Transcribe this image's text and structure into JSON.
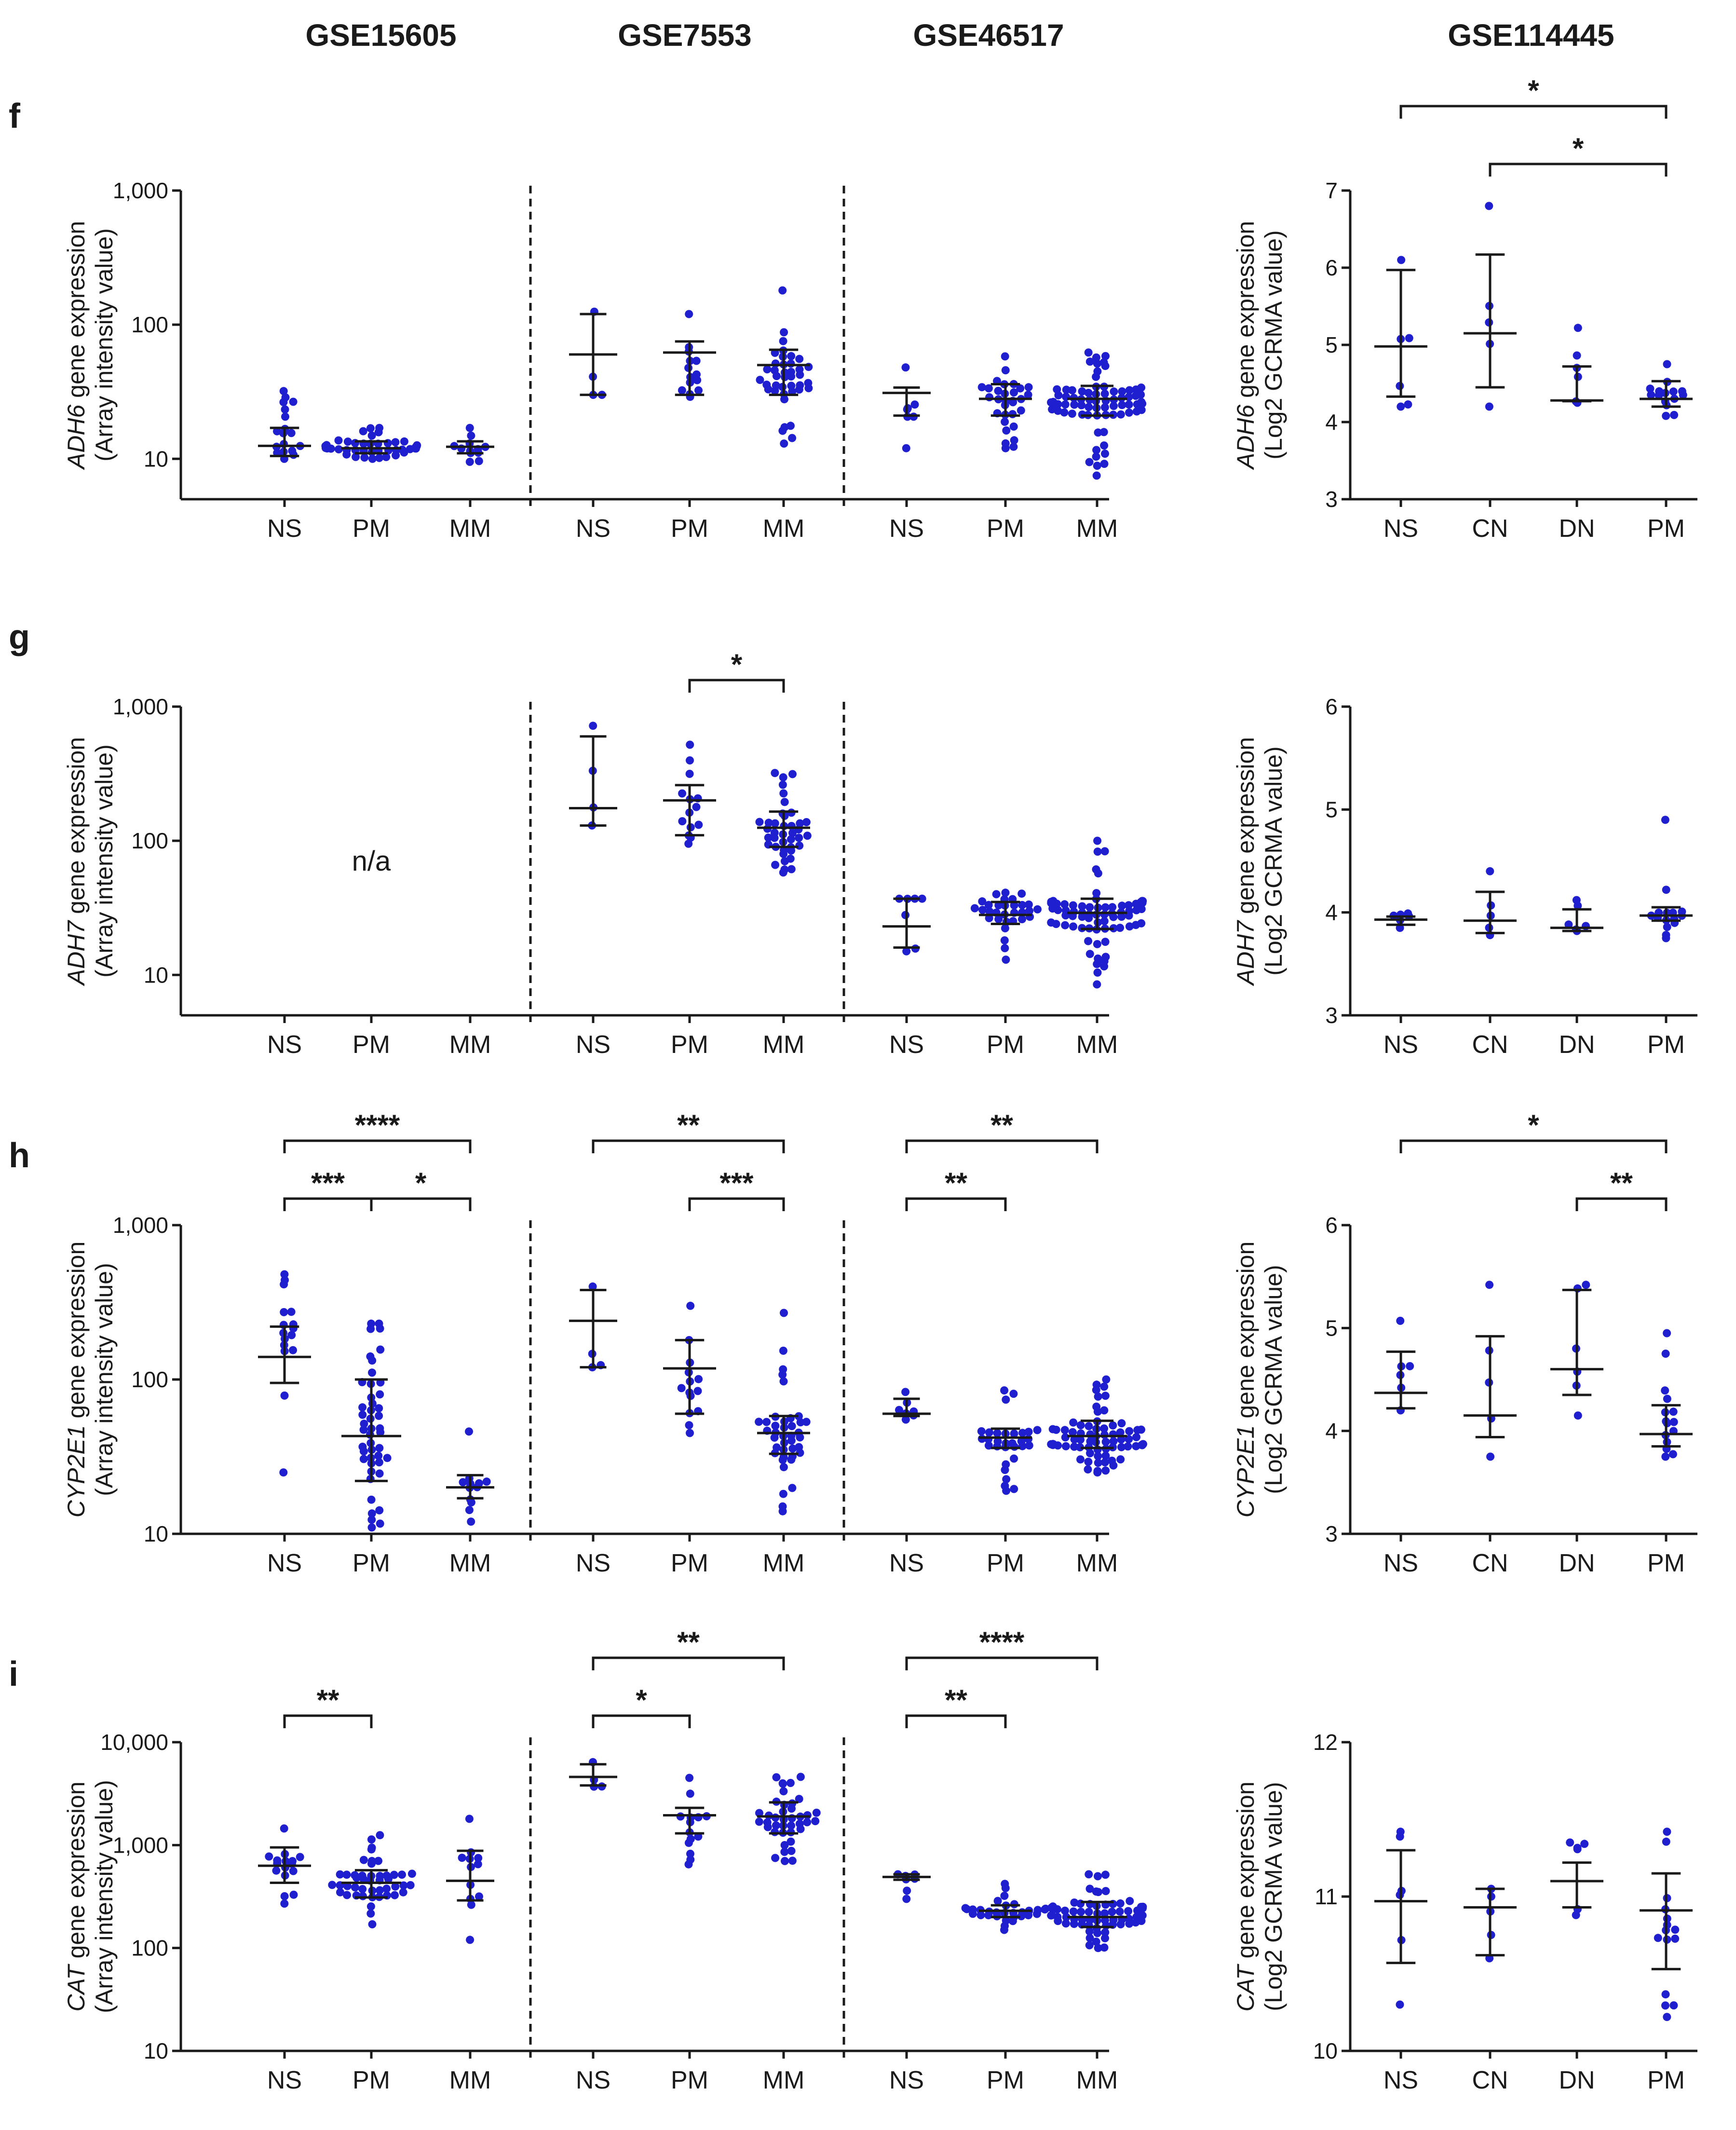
{
  "datasets": [
    "GSE15605",
    "GSE7553",
    "GSE46517",
    "GSE114445"
  ],
  "colors": {
    "points": "#1f1fd0",
    "error_bars": "#1a1a1a",
    "axes": "#1a1a1a"
  },
  "chart_data": [
    {
      "type": "scatter",
      "panel": "f",
      "gene": "ADH6",
      "left": {
        "scale": "log",
        "ylabel_gene": "ADH6",
        "ylabel_rest": " gene expression",
        "ylabel_units": "(Array intensity value)",
        "yticks": [
          10,
          100,
          1000
        ],
        "ytick_labels": [
          "10",
          "100",
          "1,000"
        ],
        "ylim": [
          5,
          1000
        ],
        "groups": [
          {
            "dataset": "GSE15605",
            "label": "NS",
            "median": 12.5,
            "lo": 10.5,
            "hi": 17,
            "min": 10,
            "max": 32,
            "n": 18
          },
          {
            "dataset": "GSE15605",
            "label": "PM",
            "median": 12,
            "lo": 11,
            "hi": 13.5,
            "min": 10,
            "max": 17,
            "n": 45
          },
          {
            "dataset": "GSE15605",
            "label": "MM",
            "median": 12.3,
            "lo": 11,
            "hi": 13.5,
            "min": 9.5,
            "max": 17,
            "n": 12
          },
          {
            "dataset": "GSE7553",
            "label": "NS",
            "median": 60,
            "lo": 30,
            "hi": 120,
            "min": 30,
            "max": 125,
            "n": 4
          },
          {
            "dataset": "GSE7553",
            "label": "PM",
            "median": 62,
            "lo": 30,
            "hi": 75,
            "min": 29,
            "max": 120,
            "n": 14
          },
          {
            "dataset": "GSE7553",
            "label": "MM",
            "median": 50,
            "lo": 30,
            "hi": 65,
            "min": 13,
            "max": 180,
            "n": 40
          },
          {
            "dataset": "GSE46517",
            "label": "NS",
            "median": 31,
            "lo": 21,
            "hi": 34,
            "min": 12,
            "max": 48,
            "n": 7
          },
          {
            "dataset": "GSE46517",
            "label": "PM",
            "median": 28,
            "lo": 21,
            "hi": 36,
            "min": 12,
            "max": 58,
            "n": 31
          },
          {
            "dataset": "GSE46517",
            "label": "MM",
            "median": 28,
            "lo": 21,
            "hi": 35,
            "min": 7.5,
            "max": 62,
            "n": 73
          }
        ],
        "brackets": []
      },
      "right": {
        "scale": "linear",
        "ylabel_gene": "ADH6",
        "ylabel_rest": " gene expression",
        "ylabel_units": "(Log2 GCRMA value)",
        "yticks": [
          3,
          4,
          5,
          6,
          7
        ],
        "ytick_labels": [
          "3",
          "4",
          "5",
          "6",
          "7"
        ],
        "ylim": [
          3,
          7
        ],
        "groups": [
          {
            "label": "NS",
            "median": 4.98,
            "lo": 4.33,
            "hi": 5.97,
            "min": 4.2,
            "max": 6.1,
            "n": 6
          },
          {
            "label": "CN",
            "median": 5.15,
            "lo": 4.45,
            "hi": 6.17,
            "min": 4.2,
            "max": 6.8,
            "n": 5
          },
          {
            "label": "DN",
            "median": 4.28,
            "lo": 4.27,
            "hi": 4.72,
            "min": 4.25,
            "max": 5.22,
            "n": 6
          },
          {
            "label": "PM",
            "median": 4.3,
            "lo": 4.2,
            "hi": 4.53,
            "min": 4.08,
            "max": 4.75,
            "n": 15
          }
        ],
        "brackets": [
          {
            "from": 0,
            "to": 3,
            "label": "*",
            "level": 1
          },
          {
            "from": 1,
            "to": 3,
            "label": "*",
            "level": 0
          }
        ]
      }
    },
    {
      "type": "scatter",
      "panel": "g",
      "gene": "ADH7",
      "left": {
        "scale": "log",
        "ylabel_gene": "ADH7",
        "ylabel_rest": " gene expression",
        "ylabel_units": "(Array intensity value)",
        "yticks": [
          10,
          100,
          1000
        ],
        "ytick_labels": [
          "10",
          "100",
          "1,000"
        ],
        "ylim": [
          5,
          1000
        ],
        "na_text": "n/a",
        "groups": [
          {
            "dataset": "GSE15605",
            "label": "NS",
            "n": 0
          },
          {
            "dataset": "GSE15605",
            "label": "PM",
            "n": 0
          },
          {
            "dataset": "GSE15605",
            "label": "MM",
            "n": 0
          },
          {
            "dataset": "GSE7553",
            "label": "NS",
            "median": 175,
            "lo": 130,
            "hi": 600,
            "min": 130,
            "max": 720,
            "n": 4
          },
          {
            "dataset": "GSE7553",
            "label": "PM",
            "median": 200,
            "lo": 110,
            "hi": 260,
            "min": 95,
            "max": 520,
            "n": 14
          },
          {
            "dataset": "GSE7553",
            "label": "MM",
            "median": 125,
            "lo": 90,
            "hi": 165,
            "min": 58,
            "max": 320,
            "n": 40
          },
          {
            "dataset": "GSE46517",
            "label": "NS",
            "median": 23,
            "lo": 16,
            "hi": 37,
            "min": 15,
            "max": 37,
            "n": 7
          },
          {
            "dataset": "GSE46517",
            "label": "PM",
            "median": 28,
            "lo": 24,
            "hi": 35,
            "min": 13,
            "max": 41,
            "n": 31
          },
          {
            "dataset": "GSE46517",
            "label": "MM",
            "median": 29,
            "lo": 22,
            "hi": 37,
            "min": 8.5,
            "max": 100,
            "n": 73
          }
        ],
        "brackets": [
          {
            "from": 4,
            "to": 5,
            "label": "*",
            "level": 0
          }
        ]
      },
      "right": {
        "scale": "linear",
        "ylabel_gene": "ADH7",
        "ylabel_rest": " gene expression",
        "ylabel_units": "(Log2 GCRMA value)",
        "yticks": [
          3,
          4,
          5,
          6
        ],
        "ytick_labels": [
          "3",
          "4",
          "5",
          "6"
        ],
        "ylim": [
          3,
          6
        ],
        "groups": [
          {
            "label": "NS",
            "median": 3.93,
            "lo": 3.88,
            "hi": 3.96,
            "min": 3.85,
            "max": 3.99,
            "n": 6
          },
          {
            "label": "CN",
            "median": 3.92,
            "lo": 3.8,
            "hi": 4.2,
            "min": 3.78,
            "max": 4.4,
            "n": 5
          },
          {
            "label": "DN",
            "median": 3.85,
            "lo": 3.82,
            "hi": 4.03,
            "min": 3.82,
            "max": 4.12,
            "n": 6
          },
          {
            "label": "PM",
            "median": 3.97,
            "lo": 3.92,
            "hi": 4.05,
            "min": 3.75,
            "max": 4.9,
            "n": 15
          }
        ],
        "brackets": []
      }
    },
    {
      "type": "scatter",
      "panel": "h",
      "gene": "CYP2E1",
      "left": {
        "scale": "log",
        "ylabel_gene": "CYP2E1",
        "ylabel_rest": " gene expression",
        "ylabel_units": "(Array intensity value)",
        "yticks": [
          10,
          100,
          1000
        ],
        "ytick_labels": [
          "10",
          "100",
          "1,000"
        ],
        "ylim": [
          10,
          1000
        ],
        "groups": [
          {
            "dataset": "GSE15605",
            "label": "NS",
            "median": 140,
            "lo": 95,
            "hi": 220,
            "min": 25,
            "max": 480,
            "n": 16
          },
          {
            "dataset": "GSE15605",
            "label": "PM",
            "median": 43,
            "lo": 22,
            "hi": 100,
            "min": 11,
            "max": 230,
            "n": 46
          },
          {
            "dataset": "GSE15605",
            "label": "MM",
            "median": 20,
            "lo": 17,
            "hi": 24,
            "min": 12,
            "max": 46,
            "n": 12
          },
          {
            "dataset": "GSE7553",
            "label": "NS",
            "median": 240,
            "lo": 120,
            "hi": 380,
            "min": 120,
            "max": 400,
            "n": 4
          },
          {
            "dataset": "GSE7553",
            "label": "PM",
            "median": 118,
            "lo": 60,
            "hi": 180,
            "min": 45,
            "max": 300,
            "n": 14
          },
          {
            "dataset": "GSE7553",
            "label": "MM",
            "median": 45,
            "lo": 33,
            "hi": 58,
            "min": 14,
            "max": 270,
            "n": 40
          },
          {
            "dataset": "GSE46517",
            "label": "NS",
            "median": 60,
            "lo": 58,
            "hi": 75,
            "min": 55,
            "max": 83,
            "n": 7
          },
          {
            "dataset": "GSE46517",
            "label": "PM",
            "median": 42,
            "lo": 36,
            "hi": 48,
            "min": 19,
            "max": 85,
            "n": 31
          },
          {
            "dataset": "GSE46517",
            "label": "MM",
            "median": 43,
            "lo": 36,
            "hi": 54,
            "min": 25,
            "max": 100,
            "n": 73
          }
        ],
        "brackets": [
          {
            "from": 0,
            "to": 2,
            "label": "****",
            "level": 1
          },
          {
            "from": 0,
            "to": 1,
            "label": "***",
            "level": 0
          },
          {
            "from": 1,
            "to": 2,
            "label": "*",
            "level": 0
          },
          {
            "from": 3,
            "to": 5,
            "label": "**",
            "level": 1
          },
          {
            "from": 4,
            "to": 5,
            "label": "***",
            "level": 0
          },
          {
            "from": 6,
            "to": 8,
            "label": "**",
            "level": 1
          },
          {
            "from": 6,
            "to": 7,
            "label": "**",
            "level": 0
          }
        ]
      },
      "right": {
        "scale": "linear",
        "ylabel_gene": "CYP2E1",
        "ylabel_rest": " gene expression",
        "ylabel_units": "(Log2 GCRMA value)",
        "yticks": [
          3,
          4,
          5,
          6
        ],
        "ytick_labels": [
          "3",
          "4",
          "5",
          "6"
        ],
        "ylim": [
          3,
          6
        ],
        "groups": [
          {
            "label": "NS",
            "median": 4.37,
            "lo": 4.22,
            "hi": 4.77,
            "min": 4.2,
            "max": 5.07,
            "n": 6
          },
          {
            "label": "CN",
            "median": 4.15,
            "lo": 3.94,
            "hi": 4.92,
            "min": 3.75,
            "max": 5.42,
            "n": 5
          },
          {
            "label": "DN",
            "median": 4.6,
            "lo": 4.35,
            "hi": 5.37,
            "min": 4.15,
            "max": 5.42,
            "n": 6
          },
          {
            "label": "PM",
            "median": 3.97,
            "lo": 3.85,
            "hi": 4.25,
            "min": 3.75,
            "max": 4.95,
            "n": 15
          }
        ],
        "brackets": [
          {
            "from": 0,
            "to": 3,
            "label": "*",
            "level": 1
          },
          {
            "from": 2,
            "to": 3,
            "label": "**",
            "level": 0
          }
        ]
      }
    },
    {
      "type": "scatter",
      "panel": "i",
      "gene": "CAT",
      "left": {
        "scale": "log",
        "ylabel_gene": "CAT",
        "ylabel_rest": " gene expression",
        "ylabel_units": "(Array intensity value)",
        "yticks": [
          10,
          100,
          1000,
          10000
        ],
        "ytick_labels": [
          "10",
          "100",
          "1,000",
          "10,000"
        ],
        "ylim": [
          10,
          10000
        ],
        "groups": [
          {
            "dataset": "GSE15605",
            "label": "NS",
            "median": 630,
            "lo": 430,
            "hi": 950,
            "min": 270,
            "max": 1450,
            "n": 16
          },
          {
            "dataset": "GSE15605",
            "label": "PM",
            "median": 430,
            "lo": 310,
            "hi": 570,
            "min": 170,
            "max": 1250,
            "n": 46
          },
          {
            "dataset": "GSE15605",
            "label": "MM",
            "median": 450,
            "lo": 290,
            "hi": 880,
            "min": 120,
            "max": 1800,
            "n": 12
          },
          {
            "dataset": "GSE7553",
            "label": "NS",
            "median": 4600,
            "lo": 3800,
            "hi": 6100,
            "min": 3700,
            "max": 6400,
            "n": 4
          },
          {
            "dataset": "GSE7553",
            "label": "PM",
            "median": 1950,
            "lo": 1300,
            "hi": 2300,
            "min": 650,
            "max": 4500,
            "n": 14
          },
          {
            "dataset": "GSE7553",
            "label": "MM",
            "median": 1900,
            "lo": 1300,
            "hi": 2600,
            "min": 700,
            "max": 4600,
            "n": 40
          },
          {
            "dataset": "GSE46517",
            "label": "NS",
            "median": 490,
            "lo": 460,
            "hi": 520,
            "min": 300,
            "max": 520,
            "n": 7
          },
          {
            "dataset": "GSE46517",
            "label": "PM",
            "median": 230,
            "lo": 200,
            "hi": 260,
            "min": 150,
            "max": 420,
            "n": 31
          },
          {
            "dataset": "GSE46517",
            "label": "MM",
            "median": 200,
            "lo": 160,
            "hi": 280,
            "min": 100,
            "max": 520,
            "n": 73
          }
        ],
        "brackets": [
          {
            "from": 0,
            "to": 1,
            "label": "**",
            "level": 0
          },
          {
            "from": 3,
            "to": 5,
            "label": "**",
            "level": 1
          },
          {
            "from": 3,
            "to": 4,
            "label": "*",
            "level": 0
          },
          {
            "from": 6,
            "to": 8,
            "label": "****",
            "level": 1
          },
          {
            "from": 6,
            "to": 7,
            "label": "**",
            "level": 0
          }
        ]
      },
      "right": {
        "scale": "linear",
        "ylabel_gene": "CAT",
        "ylabel_rest": " gene expression",
        "ylabel_units": "(Log2 GCRMA value)",
        "yticks": [
          10,
          11,
          12
        ],
        "ytick_labels": [
          "10",
          "11",
          "12"
        ],
        "ylim": [
          10,
          12
        ],
        "groups": [
          {
            "label": "NS",
            "median": 10.97,
            "lo": 10.57,
            "hi": 11.3,
            "min": 10.3,
            "max": 11.42,
            "n": 6
          },
          {
            "label": "CN",
            "median": 10.93,
            "lo": 10.62,
            "hi": 11.05,
            "min": 10.6,
            "max": 11.05,
            "n": 5
          },
          {
            "label": "DN",
            "median": 11.1,
            "lo": 10.93,
            "hi": 11.22,
            "min": 10.88,
            "max": 11.35,
            "n": 6
          },
          {
            "label": "PM",
            "median": 10.91,
            "lo": 10.53,
            "hi": 11.15,
            "min": 10.22,
            "max": 11.42,
            "n": 15
          }
        ],
        "brackets": []
      }
    }
  ]
}
